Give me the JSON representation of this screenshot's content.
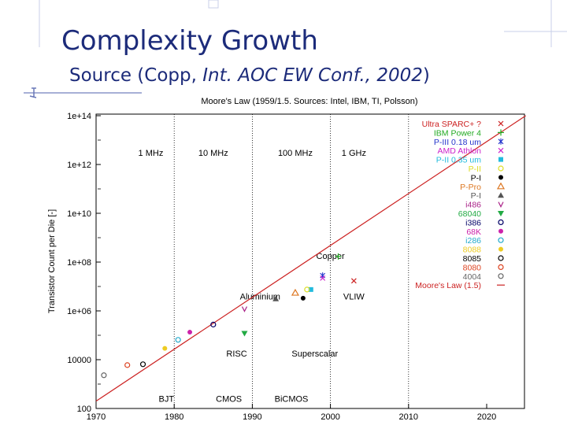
{
  "slide": {
    "title": "Complexity Growth",
    "subtitle_plain": "Source (Copp, ",
    "subtitle_italic": "Int. AOC EW Conf., 2002",
    "subtitle_end": ")"
  },
  "colors": {
    "title": "#1c2b7a",
    "trend": "#cc2222",
    "deco": "#aab4d8"
  },
  "chart_data": {
    "type": "scatter",
    "title": "Moore's Law (1959/1.5. Sources: Intel, IBM, TI, Polsson)",
    "ylabel": "Transistor Count per Die [-]",
    "xlabel": "",
    "xlim": [
      1970,
      2025
    ],
    "ylim": [
      100,
      1000000000000000.0
    ],
    "yscale": "log",
    "x_ticks": [
      "1970",
      "1980",
      "1990",
      "2000",
      "2010",
      "2020"
    ],
    "y_ticks": [
      "100",
      "10000",
      "1e+06",
      "1e+08",
      "1e+10",
      "1e+12",
      "1e+14"
    ],
    "grid": "vertical dashed lines at 1980, 1990, 2000, 2010; horizontal dashes at odd decades",
    "clock_labels": [
      {
        "text": "1 MHz",
        "x": 1977,
        "y": 3000000000000.0
      },
      {
        "text": "10 MHz",
        "x": 1985,
        "y": 3000000000000.0
      },
      {
        "text": "100 MHz",
        "x": 1995.5,
        "y": 3000000000000.0
      },
      {
        "text": "1 GHz",
        "x": 2003,
        "y": 3000000000000.0
      }
    ],
    "technology_labels": [
      {
        "text": "Copper",
        "x": 2000,
        "y": 180000000.0
      },
      {
        "text": "Aluminium",
        "x": 1991,
        "y": 4000000.0
      },
      {
        "text": "VLIW",
        "x": 2003,
        "y": 4000000.0
      },
      {
        "text": "RISC",
        "x": 1988,
        "y": 18000.0
      },
      {
        "text": "Superscalar",
        "x": 1998,
        "y": 18000.0
      },
      {
        "text": "BJT",
        "x": 1979,
        "y": 250
      },
      {
        "text": "CMOS",
        "x": 1987,
        "y": 250
      },
      {
        "text": "BiCMOS",
        "x": 1995,
        "y": 250
      }
    ],
    "trend": {
      "name": "Moore's Law (1.5)",
      "x": [
        1970,
        2025
      ],
      "y": [
        200,
        100000000000000.0
      ]
    },
    "series": [
      {
        "name": "Ultra SPARC+ ?",
        "color": "#cc2222",
        "symbol": "x",
        "points": [
          {
            "x": 2003,
            "y": 17000000.0
          }
        ]
      },
      {
        "name": "IBM Power 4",
        "color": "#22aa22",
        "symbol": "+",
        "points": [
          {
            "x": 2001,
            "y": 170000000.0
          }
        ]
      },
      {
        "name": "P-III 0.18 um",
        "color": "#2233cc",
        "symbol": "*",
        "points": [
          {
            "x": 1999,
            "y": 28000000.0
          }
        ]
      },
      {
        "name": "AMD Athlon",
        "color": "#cc22cc",
        "symbol": "x",
        "points": [
          {
            "x": 1999,
            "y": 22000000.0
          }
        ]
      },
      {
        "name": "P-II 0.35 um",
        "color": "#22bbdd",
        "symbol": "square",
        "points": [
          {
            "x": 1997.5,
            "y": 7500000.0
          }
        ]
      },
      {
        "name": "P-II",
        "color": "#dddd22",
        "symbol": "open-circle",
        "points": [
          {
            "x": 1997,
            "y": 7500000.0
          }
        ]
      },
      {
        "name": "P-I",
        "color": "#000000",
        "symbol": "circle",
        "points": [
          {
            "x": 1996.5,
            "y": 3300000.0
          }
        ]
      },
      {
        "name": "P-Pro",
        "color": "#dd7722",
        "symbol": "open-triangle",
        "points": [
          {
            "x": 1995.5,
            "y": 5500000.0
          }
        ]
      },
      {
        "name": "P-I",
        "color": "#555555",
        "symbol": "triangle",
        "points": [
          {
            "x": 1993,
            "y": 3100000.0
          }
        ]
      },
      {
        "name": "i486",
        "color": "#aa2288",
        "symbol": "v",
        "points": [
          {
            "x": 1989,
            "y": 1200000.0
          }
        ]
      },
      {
        "name": "68040",
        "color": "#22aa44",
        "symbol": "inverted-triangle",
        "points": [
          {
            "x": 1989,
            "y": 120000.0
          }
        ]
      },
      {
        "name": "i386",
        "color": "#000066",
        "symbol": "open-circle",
        "points": [
          {
            "x": 1985,
            "y": 275000.0
          }
        ]
      },
      {
        "name": "68K",
        "color": "#cc22aa",
        "symbol": "circle",
        "points": [
          {
            "x": 1982,
            "y": 134000.0
          }
        ]
      },
      {
        "name": "i286",
        "color": "#22aacc",
        "symbol": "open-circle",
        "points": [
          {
            "x": 1980.5,
            "y": 65000.0
          }
        ]
      },
      {
        "name": "8088",
        "color": "#eecc22",
        "symbol": "circle",
        "points": [
          {
            "x": 1978.8,
            "y": 29000.0
          }
        ]
      },
      {
        "name": "8085",
        "color": "#000000",
        "symbol": "open-circle",
        "points": [
          {
            "x": 1976,
            "y": 6500
          }
        ]
      },
      {
        "name": "8080",
        "color": "#dd4422",
        "symbol": "open-circle",
        "points": [
          {
            "x": 1974,
            "y": 6000
          }
        ]
      },
      {
        "name": "4004",
        "color": "#666666",
        "symbol": "open-circle",
        "points": [
          {
            "x": 1971,
            "y": 2300
          }
        ]
      },
      {
        "name": "Moore's Law (1.5)",
        "color": "#cc2222",
        "symbol": "line",
        "points": []
      }
    ]
  }
}
